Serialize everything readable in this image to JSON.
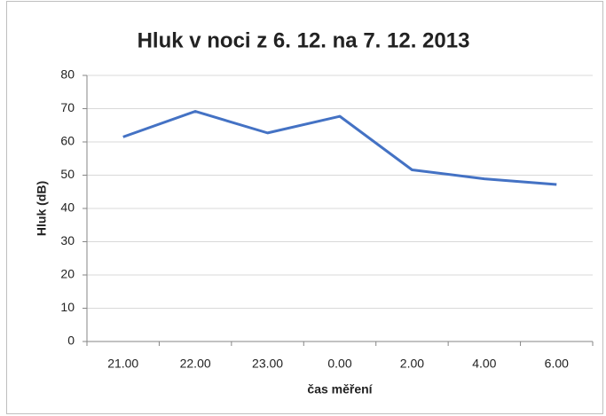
{
  "chart_data": {
    "type": "line",
    "title": "Hluk v noci z 6. 12. na 7. 12. 2013",
    "x_label": "čas měření",
    "y_label": "Hluk (dB)",
    "categories": [
      "21.00",
      "22.00",
      "23.00",
      "0.00",
      "2.00",
      "4.00",
      "6.00"
    ],
    "series": [
      {
        "name": "Hluk",
        "color": "#4472c4",
        "values": [
          61.5,
          69.2,
          62.7,
          67.7,
          51.6,
          48.9,
          47.2
        ]
      }
    ],
    "ylim": [
      0,
      80
    ],
    "yticks": [
      0,
      10,
      20,
      30,
      40,
      50,
      60,
      70,
      80
    ],
    "grid": true
  }
}
